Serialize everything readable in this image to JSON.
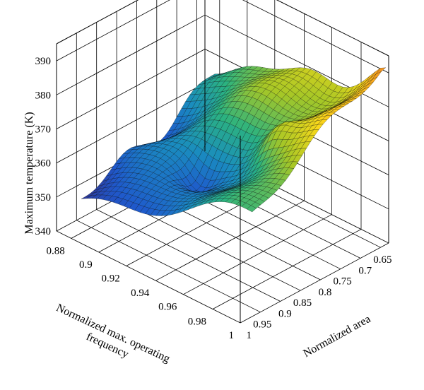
{
  "chart_data": {
    "type": "surface3d",
    "title": "",
    "zlabel": "Maximum temperature (K)",
    "xlabel": "Normalized max. operating frequency",
    "ylabel": "Normalized area",
    "x_ticks": [
      "0.88",
      "0.9",
      "0.92",
      "0.94",
      "0.96",
      "0.98",
      "1"
    ],
    "y_ticks": [
      "1",
      "0.95",
      "0.9",
      "0.85",
      "0.8",
      "0.75",
      "0.7",
      "0.65"
    ],
    "z_ticks": [
      "340",
      "350",
      "360",
      "370",
      "380",
      "390"
    ],
    "xlim": [
      0.87,
      1.0
    ],
    "ylim": [
      0.63,
      1.0
    ],
    "zlim": [
      340,
      395
    ],
    "z_range": [
      347,
      392
    ],
    "colormap": "parula",
    "grid": true,
    "surface_description": "Temperature rises from about 347 K at low frequency / large area to about 392 K at high frequency / small area"
  }
}
